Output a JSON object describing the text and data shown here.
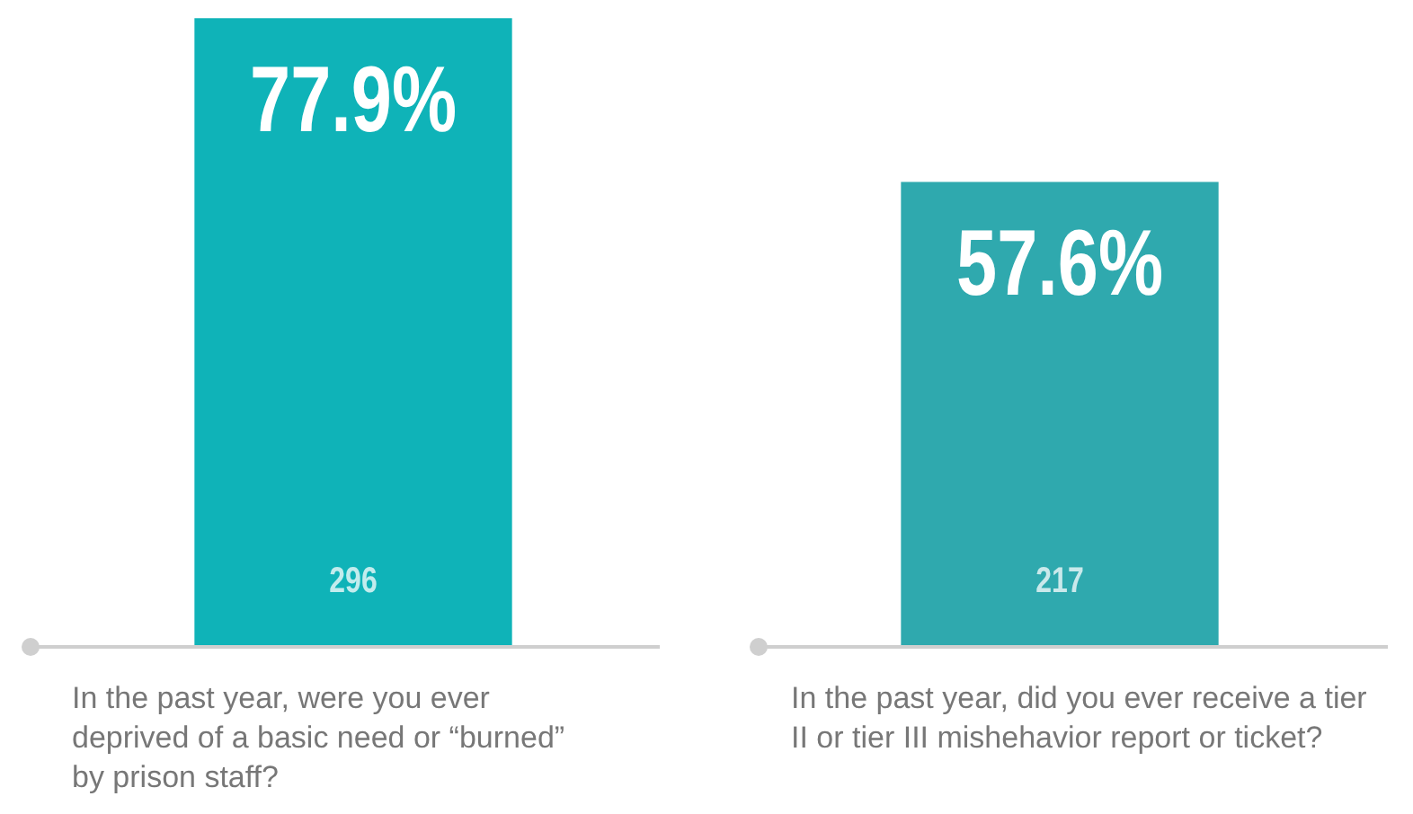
{
  "chart_data": {
    "type": "bar",
    "categories": [
      "In the past year, were you ever deprived of a basic need or “burned” by prison staff?",
      "In the past year, did you ever receive a tier II or tier III mishehavior report or ticket?"
    ],
    "values": [
      77.9,
      57.6
    ],
    "colors": [
      "#0fb3b8",
      "#2fa9ae"
    ],
    "value_labels": [
      "77.9%",
      "57.6%"
    ],
    "annotations": [
      "296",
      "217"
    ],
    "ylim": [
      0,
      78
    ],
    "legend": false
  }
}
